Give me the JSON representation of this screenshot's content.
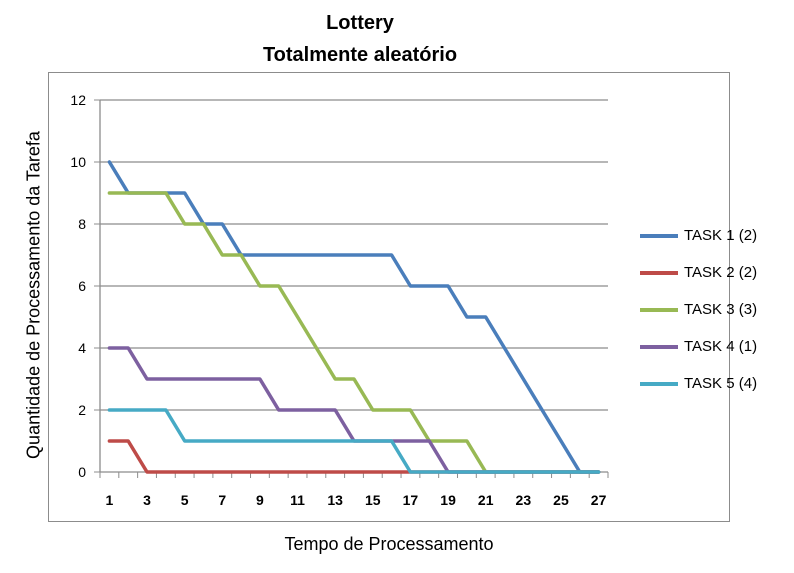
{
  "chart_data": {
    "type": "line",
    "title": "Lottery",
    "subtitle": "Totalmente aleatório",
    "xlabel": "Tempo de Processamento",
    "ylabel": "Quantidade de Processamento da Tarefa",
    "x": [
      1,
      2,
      3,
      4,
      5,
      6,
      7,
      8,
      9,
      10,
      11,
      12,
      13,
      14,
      15,
      16,
      17,
      18,
      19,
      20,
      21,
      22,
      23,
      24,
      25,
      26,
      27
    ],
    "xticks": [
      "1",
      "3",
      "5",
      "7",
      "9",
      "11",
      "13",
      "15",
      "17",
      "19",
      "21",
      "23",
      "25",
      "27"
    ],
    "yticks": [
      "0",
      "2",
      "4",
      "6",
      "8",
      "10",
      "12"
    ],
    "ylim": [
      0,
      12
    ],
    "xlim": [
      0.5,
      27.5
    ],
    "grid": "horizontal",
    "legend_position": "right",
    "series": [
      {
        "name": "TASK 1 (2)",
        "color": "#4a7ebb",
        "values": [
          10,
          9,
          9,
          9,
          9,
          8,
          8,
          7,
          7,
          7,
          7,
          7,
          7,
          7,
          7,
          7,
          6,
          6,
          6,
          5,
          5,
          4,
          3,
          2,
          1,
          0,
          0
        ]
      },
      {
        "name": "TASK 2 (2)",
        "color": "#be4b48",
        "values": [
          1,
          1,
          0,
          0,
          0,
          0,
          0,
          0,
          0,
          0,
          0,
          0,
          0,
          0,
          0,
          0,
          0,
          0,
          0,
          0,
          0,
          0,
          0,
          0,
          0,
          0,
          0
        ]
      },
      {
        "name": "TASK 3 (3)",
        "color": "#98b954",
        "values": [
          9,
          9,
          9,
          9,
          8,
          8,
          7,
          7,
          6,
          6,
          5,
          4,
          3,
          3,
          2,
          2,
          2,
          1,
          1,
          1,
          0,
          0,
          0,
          0,
          0,
          0,
          0
        ]
      },
      {
        "name": "TASK 4 (1)",
        "color": "#7d60a0",
        "values": [
          4,
          4,
          3,
          3,
          3,
          3,
          3,
          3,
          3,
          2,
          2,
          2,
          2,
          1,
          1,
          1,
          1,
          1,
          0,
          0,
          0,
          0,
          0,
          0,
          0,
          0,
          0
        ]
      },
      {
        "name": "TASK 5 (4)",
        "color": "#46aac5",
        "values": [
          2,
          2,
          2,
          2,
          1,
          1,
          1,
          1,
          1,
          1,
          1,
          1,
          1,
          1,
          1,
          1,
          0,
          0,
          0,
          0,
          0,
          0,
          0,
          0,
          0,
          0,
          0
        ]
      }
    ]
  }
}
